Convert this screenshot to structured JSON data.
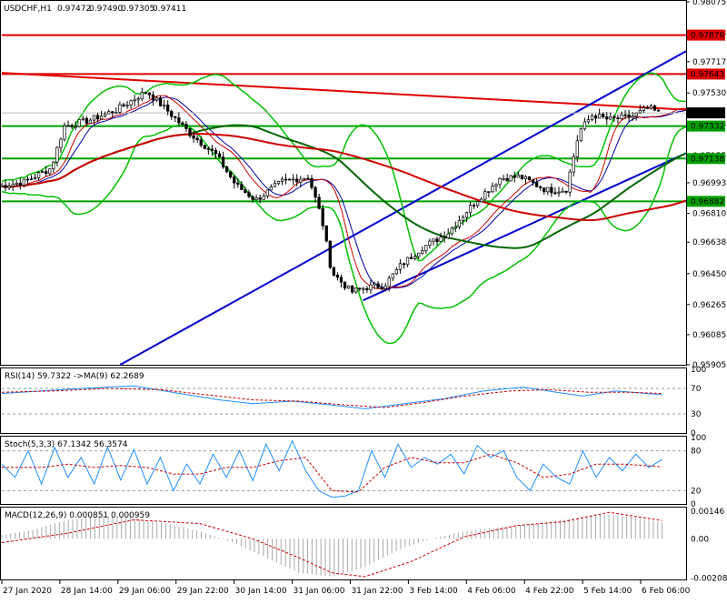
{
  "header": {
    "symbol_label": "USDCHF,H1",
    "ohlc": [
      "0.97472",
      "0.97490",
      "0.97305",
      "0.97411"
    ]
  },
  "colors": {
    "bull": "#000000",
    "bear": "#000000",
    "bull_fill": "#ffffff",
    "bear_fill": "#000000",
    "resistance": "#e00000",
    "support": "#00a000",
    "channel": "#0000cc",
    "bollinger": "#00c000",
    "ma_fast": "#cc0000",
    "ma_mid": "#006600",
    "price_tag": "#000000"
  },
  "chart_data": [
    {
      "type": "candlestick",
      "title": "USDCHF,H1",
      "ylim": [
        0.95905,
        0.98075
      ],
      "y_ticks": [
        "0.98075",
        "0.97888",
        "0.97717",
        "0.97530",
        "0.97343",
        "0.97155",
        "0.96993",
        "0.96810",
        "0.96638",
        "0.96450",
        "0.96265",
        "0.96085",
        "0.95905"
      ],
      "x_ticks": [
        "27 Jan 2020",
        "28 Jan 14:00",
        "29 Jan 06:00",
        "29 Jan 22:00",
        "30 Jan 14:00",
        "31 Jan 06:00",
        "31 Jan 22:00",
        "3 Feb 14:00",
        "4 Feb 06:00",
        "4 Feb 22:00",
        "5 Feb 14:00",
        "6 Feb 06:00"
      ],
      "last_price": "0.97411",
      "horizontal_levels": [
        {
          "value": 0.97876,
          "label": "0.97876",
          "role": "resistance"
        },
        {
          "value": 0.97643,
          "label": "0.97643",
          "role": "resistance"
        },
        {
          "value": 0.97332,
          "label": "0.97332",
          "role": "support"
        },
        {
          "value": 0.97138,
          "label": "0.97138",
          "role": "support"
        },
        {
          "value": 0.96882,
          "label": "0.96882",
          "role": "support"
        }
      ],
      "trendlines": [
        {
          "role": "resistance",
          "points": [
            [
              0,
              0.9765
            ],
            [
              1,
              0.9743
            ]
          ]
        },
        {
          "role": "channel-upper",
          "points": [
            [
              0.173,
              0.95905
            ],
            [
              1,
              0.9778
            ]
          ]
        },
        {
          "role": "channel-lower",
          "points": [
            [
              0.528,
              0.9629
            ],
            [
              1,
              0.9717
            ]
          ]
        }
      ],
      "price_path": [
        [
          0.0,
          0.9697
        ],
        [
          0.04,
          0.97
        ],
        [
          0.08,
          0.9708
        ],
        [
          0.1,
          0.9733
        ],
        [
          0.14,
          0.9737
        ],
        [
          0.18,
          0.9743
        ],
        [
          0.225,
          0.9754
        ],
        [
          0.255,
          0.9743
        ],
        [
          0.29,
          0.9729
        ],
        [
          0.33,
          0.9716
        ],
        [
          0.36,
          0.9698
        ],
        [
          0.39,
          0.9689
        ],
        [
          0.43,
          0.97
        ],
        [
          0.47,
          0.9703
        ],
        [
          0.49,
          0.9678
        ],
        [
          0.505,
          0.9646
        ],
        [
          0.535,
          0.9634
        ],
        [
          0.56,
          0.9637
        ],
        [
          0.585,
          0.9638
        ],
        [
          0.61,
          0.965
        ],
        [
          0.64,
          0.966
        ],
        [
          0.68,
          0.9669
        ],
        [
          0.72,
          0.9687
        ],
        [
          0.76,
          0.9702
        ],
        [
          0.79,
          0.9703
        ],
        [
          0.83,
          0.9695
        ],
        [
          0.86,
          0.9695
        ],
        [
          0.88,
          0.973
        ],
        [
          0.9,
          0.974
        ],
        [
          0.925,
          0.9737
        ],
        [
          0.96,
          0.9739
        ],
        [
          0.985,
          0.9744
        ],
        [
          1.0,
          0.97411
        ]
      ]
    },
    {
      "type": "line",
      "title": "RSI(14) 59.7322 ->MA(9) 62.2689",
      "ylim": [
        0,
        100
      ],
      "y_ticks": [
        "100",
        "70",
        "30",
        "0"
      ],
      "guides": [
        70,
        30
      ],
      "series": [
        {
          "values": [
            [
              0,
              62
            ],
            [
              0.06,
              66
            ],
            [
              0.12,
              70
            ],
            [
              0.2,
              74
            ],
            [
              0.27,
              62
            ],
            [
              0.33,
              52
            ],
            [
              0.38,
              46
            ],
            [
              0.44,
              50
            ],
            [
              0.5,
              44
            ],
            [
              0.55,
              38
            ],
            [
              0.61,
              46
            ],
            [
              0.67,
              54
            ],
            [
              0.73,
              66
            ],
            [
              0.79,
              72
            ],
            [
              0.84,
              64
            ],
            [
              0.88,
              58
            ],
            [
              0.93,
              66
            ],
            [
              1,
              60
            ]
          ]
        },
        {
          "values": [
            [
              0,
              64
            ],
            [
              0.08,
              66
            ],
            [
              0.16,
              70
            ],
            [
              0.24,
              68
            ],
            [
              0.31,
              60
            ],
            [
              0.38,
              52
            ],
            [
              0.45,
              50
            ],
            [
              0.52,
              44
            ],
            [
              0.58,
              40
            ],
            [
              0.64,
              48
            ],
            [
              0.7,
              58
            ],
            [
              0.77,
              66
            ],
            [
              0.83,
              68
            ],
            [
              0.89,
              64
            ],
            [
              0.95,
              64
            ],
            [
              1,
              62
            ]
          ]
        }
      ]
    },
    {
      "type": "line",
      "title": "Stoch(5,3,3) 67.1342 56.3574",
      "ylim": [
        0,
        100
      ],
      "y_ticks": [
        "100",
        "80",
        "20",
        "0"
      ],
      "guides": [
        80,
        20
      ],
      "series": [
        {
          "values": [
            [
              0,
              60
            ],
            [
              0.02,
              40
            ],
            [
              0.04,
              80
            ],
            [
              0.06,
              30
            ],
            [
              0.08,
              85
            ],
            [
              0.1,
              40
            ],
            [
              0.12,
              70
            ],
            [
              0.14,
              30
            ],
            [
              0.16,
              86
            ],
            [
              0.18,
              36
            ],
            [
              0.2,
              82
            ],
            [
              0.22,
              30
            ],
            [
              0.24,
              70
            ],
            [
              0.26,
              20
            ],
            [
              0.28,
              60
            ],
            [
              0.3,
              30
            ],
            [
              0.32,
              75
            ],
            [
              0.34,
              40
            ],
            [
              0.36,
              80
            ],
            [
              0.38,
              35
            ],
            [
              0.4,
              90
            ],
            [
              0.42,
              50
            ],
            [
              0.44,
              95
            ],
            [
              0.46,
              50
            ],
            [
              0.48,
              20
            ],
            [
              0.5,
              10
            ],
            [
              0.52,
              12
            ],
            [
              0.54,
              20
            ],
            [
              0.56,
              80
            ],
            [
              0.58,
              40
            ],
            [
              0.6,
              90
            ],
            [
              0.62,
              55
            ],
            [
              0.64,
              70
            ],
            [
              0.66,
              60
            ],
            [
              0.68,
              75
            ],
            [
              0.7,
              45
            ],
            [
              0.72,
              88
            ],
            [
              0.74,
              70
            ],
            [
              0.76,
              80
            ],
            [
              0.78,
              40
            ],
            [
              0.8,
              20
            ],
            [
              0.82,
              60
            ],
            [
              0.84,
              40
            ],
            [
              0.86,
              30
            ],
            [
              0.88,
              80
            ],
            [
              0.9,
              40
            ],
            [
              0.92,
              70
            ],
            [
              0.94,
              50
            ],
            [
              0.96,
              75
            ],
            [
              0.98,
              55
            ],
            [
              1,
              67
            ]
          ]
        },
        {
          "values": [
            [
              0,
              55
            ],
            [
              0.03,
              55
            ],
            [
              0.06,
              55
            ],
            [
              0.1,
              60
            ],
            [
              0.14,
              55
            ],
            [
              0.18,
              58
            ],
            [
              0.22,
              55
            ],
            [
              0.26,
              45
            ],
            [
              0.3,
              45
            ],
            [
              0.34,
              55
            ],
            [
              0.38,
              55
            ],
            [
              0.42,
              65
            ],
            [
              0.46,
              70
            ],
            [
              0.5,
              20
            ],
            [
              0.54,
              18
            ],
            [
              0.58,
              55
            ],
            [
              0.62,
              70
            ],
            [
              0.66,
              62
            ],
            [
              0.7,
              62
            ],
            [
              0.74,
              75
            ],
            [
              0.78,
              62
            ],
            [
              0.82,
              40
            ],
            [
              0.86,
              45
            ],
            [
              0.9,
              60
            ],
            [
              0.94,
              60
            ],
            [
              1,
              56
            ]
          ]
        }
      ]
    },
    {
      "type": "bar",
      "title": "MACD(12,26,9) 0.000851 0.000959",
      "ylim": [
        -0.0021,
        0.0016
      ],
      "y_ticks": [
        "0.00146",
        "0.00",
        "-0.002081"
      ],
      "signal": [
        [
          0,
          -0.0002
        ],
        [
          0.1,
          0.0003
        ],
        [
          0.2,
          0.001
        ],
        [
          0.3,
          0.0008
        ],
        [
          0.38,
          0.0
        ],
        [
          0.45,
          -0.001
        ],
        [
          0.5,
          -0.0018
        ],
        [
          0.55,
          -0.002
        ],
        [
          0.62,
          -0.0012
        ],
        [
          0.7,
          0.0001
        ],
        [
          0.78,
          0.0007
        ],
        [
          0.85,
          0.0009
        ],
        [
          0.92,
          0.0014
        ],
        [
          1,
          0.00096
        ]
      ],
      "histogram": [
        [
          0,
          0.0002
        ],
        [
          0.05,
          0.0005
        ],
        [
          0.1,
          0.001
        ],
        [
          0.15,
          0.0012
        ],
        [
          0.2,
          0.0011
        ],
        [
          0.25,
          0.0008
        ],
        [
          0.3,
          0.0004
        ],
        [
          0.35,
          -0.0002
        ],
        [
          0.4,
          -0.001
        ],
        [
          0.45,
          -0.0018
        ],
        [
          0.5,
          -0.002
        ],
        [
          0.55,
          -0.0015
        ],
        [
          0.6,
          -0.0006
        ],
        [
          0.65,
          0.0
        ],
        [
          0.7,
          0.0004
        ],
        [
          0.75,
          0.0006
        ],
        [
          0.8,
          0.0008
        ],
        [
          0.85,
          0.001
        ],
        [
          0.9,
          0.0013
        ],
        [
          0.95,
          0.0012
        ],
        [
          1,
          0.00085
        ]
      ]
    }
  ]
}
